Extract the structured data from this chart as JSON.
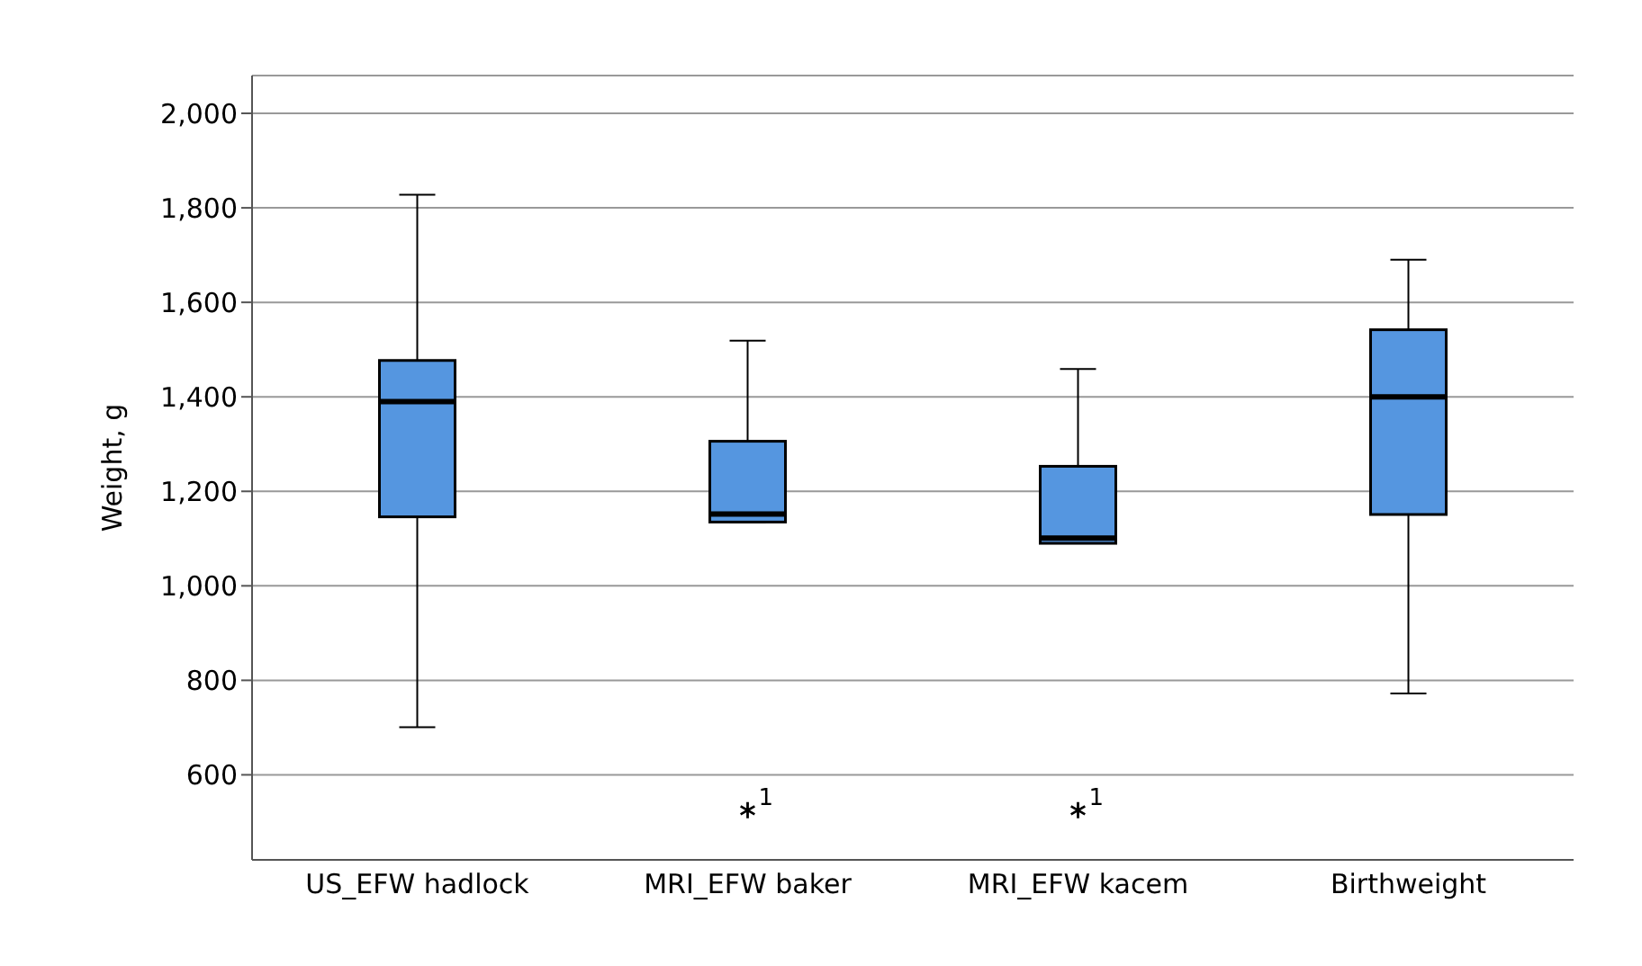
{
  "chart_data": {
    "type": "box",
    "ylabel": "Weight, g",
    "categories": [
      "US_EFW hadlock",
      "MRI_EFW baker",
      "MRI_EFW kacem",
      "Birthweight"
    ],
    "color": "#5596e0",
    "boxes": [
      {
        "low": 701,
        "q1": 1146,
        "median": 1390,
        "q3": 1477,
        "high": 1828
      },
      {
        "low": 1135,
        "q1": 1135,
        "median": 1152,
        "q3": 1306,
        "high": 1519,
        "outliers": [
          525
        ]
      },
      {
        "low": 1090,
        "q1": 1090,
        "median": 1101,
        "q3": 1253,
        "high": 1459,
        "outliers": [
          525
        ]
      },
      {
        "low": 772,
        "q1": 1151,
        "median": 1400,
        "q3": 1542,
        "high": 1690
      }
    ],
    "ylim": [
      420,
      2080
    ],
    "yticks": [
      {
        "value": 600,
        "label": "600"
      },
      {
        "value": 800,
        "label": "800"
      },
      {
        "value": 1000,
        "label": "1,000"
      },
      {
        "value": 1200,
        "label": "1,200"
      },
      {
        "value": 1400,
        "label": "1,400"
      },
      {
        "value": 1600,
        "label": "1,600"
      },
      {
        "value": 1800,
        "label": "1,800"
      },
      {
        "value": 2000,
        "label": "2,000"
      }
    ],
    "grid": "y",
    "annotations": [
      "1",
      "1"
    ]
  }
}
